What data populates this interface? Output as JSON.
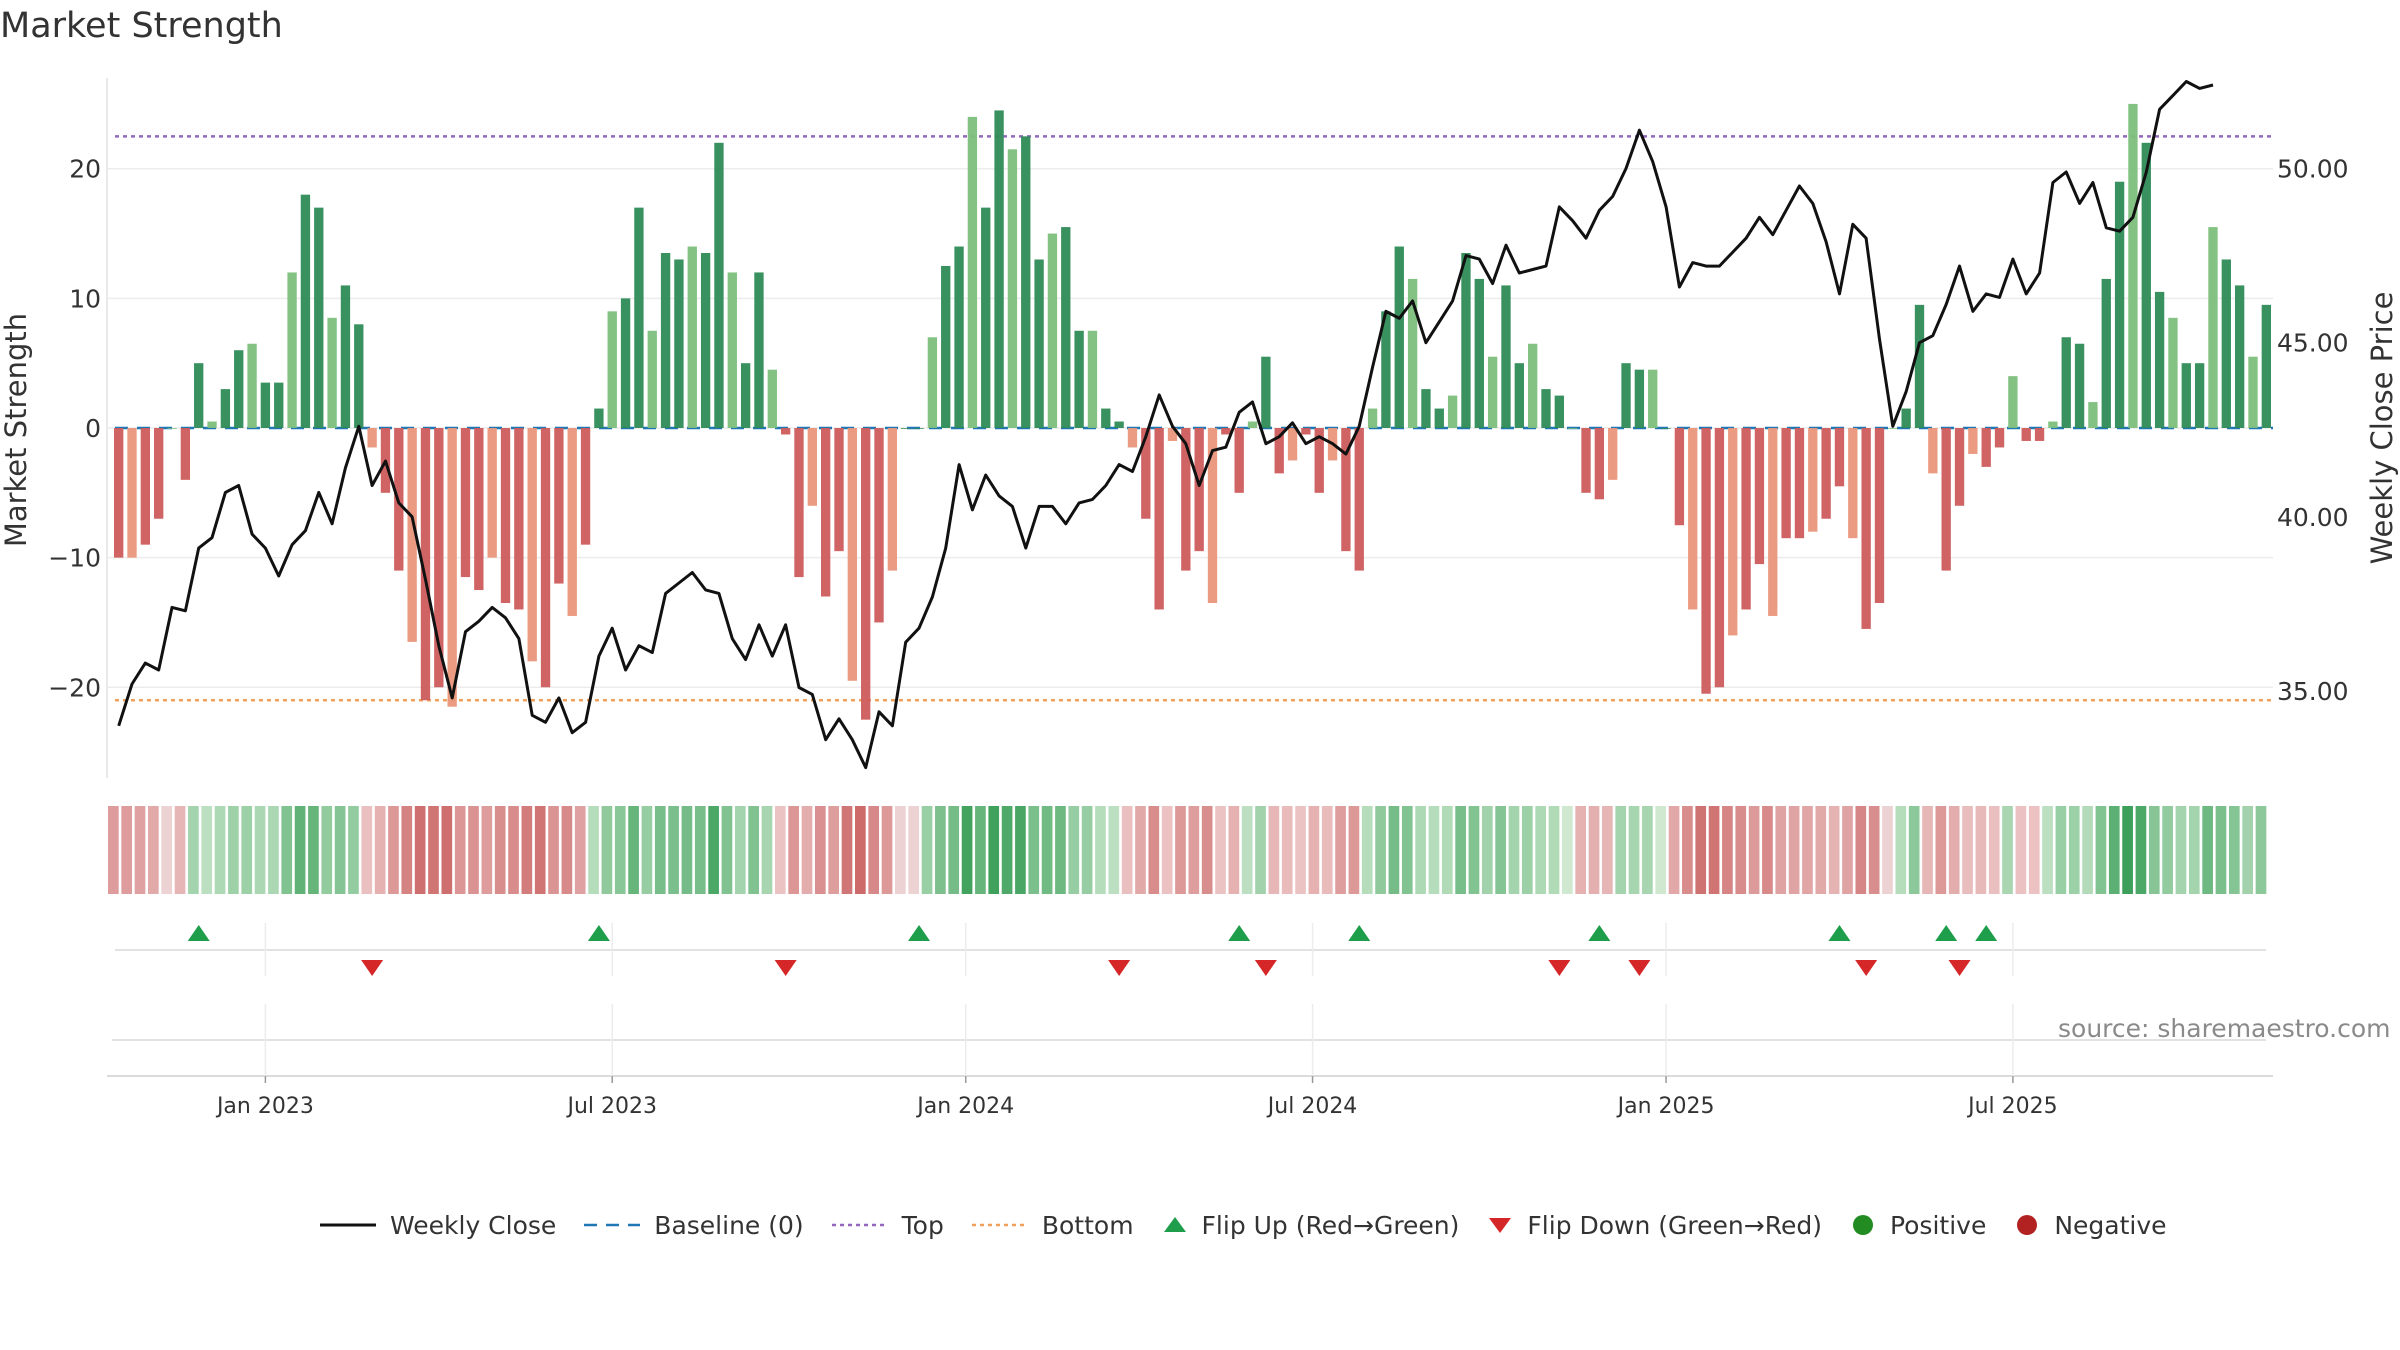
{
  "title": "Market Strength",
  "source": "source: sharemaestro.com",
  "colors": {
    "pos_dark": "#2e8b57",
    "pos_light": "#7cbf7c",
    "neg_dark": "#cd5c5c",
    "neg_light": "#e9967a",
    "top": "#9467bd",
    "bottom": "#f0a05a",
    "baseline": "#1f77b4",
    "flip_up": "#1e9e4a",
    "flip_down": "#d62728",
    "positive": "#228b22",
    "negative": "#b22222",
    "price": "#111111"
  },
  "legend": [
    {
      "key": "line",
      "label": "Weekly Close",
      "icon": "line-icon"
    },
    {
      "key": "baseline",
      "label": "Baseline (0)",
      "icon": "dashed-line-icon"
    },
    {
      "key": "top",
      "label": "Top",
      "icon": "dotted-line-icon"
    },
    {
      "key": "bottom",
      "label": "Bottom",
      "icon": "dotted-line-icon"
    },
    {
      "key": "flip_up",
      "label": "Flip Up (Red→Green)",
      "icon": "triangle-up-icon"
    },
    {
      "key": "flip_down",
      "label": "Flip Down (Green→Red)",
      "icon": "triangle-down-icon"
    },
    {
      "key": "positive",
      "label": "Positive",
      "icon": "dot-icon"
    },
    {
      "key": "negative",
      "label": "Negative",
      "icon": "dot-icon"
    }
  ],
  "chart_data": {
    "type": "bar",
    "title": "Market Strength",
    "ylabel": "Market Strength",
    "y2label": "Weekly Close Price",
    "ylim": [
      -27,
      27
    ],
    "y2lim": [
      32.5,
      52.6
    ],
    "yticks": [
      -20,
      -10,
      0,
      10,
      20
    ],
    "y2ticks": [
      35,
      40,
      45,
      50
    ],
    "y2ticklabels": [
      "35.00",
      "40.00",
      "45.00",
      "50.00"
    ],
    "top_level": 22.5,
    "bottom_level": -21,
    "baseline": 0,
    "x_axis": {
      "start": "2022-10-17",
      "period": "weekly",
      "tick_labels": [
        "Jan 2023",
        "Jul 2023",
        "Jan 2024",
        "Jul 2024",
        "Jan 2025",
        "Jul 2025"
      ],
      "tick_weeks": [
        11.5,
        37.5,
        64,
        90,
        116.5,
        142.5
      ]
    },
    "series": [
      {
        "name": "Market Strength",
        "type": "bar",
        "values": [
          -10,
          -10,
          -9,
          -7,
          0,
          -4,
          5,
          0.5,
          3,
          6,
          6.5,
          3.5,
          3.5,
          12,
          18,
          17,
          8.5,
          11,
          8,
          -1.5,
          -5,
          -11,
          -16.5,
          -21,
          -20,
          -21.5,
          -11.5,
          -12.5,
          -10,
          -13.5,
          -14,
          -18,
          -20,
          -12,
          -14.5,
          -9,
          1.5,
          9,
          10,
          17,
          7.5,
          13.5,
          13,
          14,
          13.5,
          22,
          12,
          5,
          12,
          4.5,
          -0.5,
          -11.5,
          -6,
          -13,
          -9.5,
          -19.5,
          -22.5,
          -15,
          -11,
          0,
          0,
          7,
          12.5,
          14,
          24,
          17,
          24.5,
          21.5,
          22.5,
          13,
          15,
          15.5,
          7.5,
          7.5,
          1.5,
          0.5,
          -1.5,
          -7,
          -14,
          -1,
          -11,
          -9.5,
          -13.5,
          -0.5,
          -5,
          0.5,
          5.5,
          -3.5,
          -2.5,
          -0.5,
          -5,
          -2.5,
          -9.5,
          -11,
          1.5,
          9,
          14,
          11.5,
          3,
          1.5,
          2.5,
          13.5,
          11.5,
          5.5,
          11,
          5,
          6.5,
          3,
          2.5,
          0,
          -5,
          -5.5,
          -4,
          5,
          4.5,
          4.5,
          0,
          -7.5,
          -14,
          -20.5,
          -20,
          -16,
          -14,
          -10.5,
          -14.5,
          -8.5,
          -8.5,
          -8,
          -7,
          -4.5,
          -8.5,
          -15.5,
          -13.5,
          0,
          1.5,
          9.5,
          -3.5,
          -11,
          -6,
          -2,
          -3,
          -1.5,
          4,
          -1,
          -1,
          0.5,
          7,
          6.5,
          2,
          11.5,
          19,
          25,
          22,
          10.5,
          8.5,
          5,
          5,
          15.5,
          13,
          11,
          5.5,
          9.5
        ]
      },
      {
        "name": "Weekly Close",
        "type": "line",
        "values": [
          34,
          35.2,
          35.8,
          35.6,
          37.4,
          37.3,
          39.1,
          39.4,
          40.7,
          40.9,
          39.5,
          39.1,
          38.3,
          39.2,
          39.6,
          40.7,
          39.8,
          41.4,
          42.6,
          40.9,
          41.6,
          40.4,
          40,
          38.2,
          36.3,
          34.8,
          36.7,
          37,
          37.4,
          37.1,
          36.5,
          34.3,
          34.1,
          34.8,
          33.8,
          34.1,
          36,
          36.8,
          35.6,
          36.3,
          36.1,
          37.8,
          38.1,
          38.4,
          37.9,
          37.8,
          36.5,
          35.9,
          36.9,
          36,
          36.9,
          35.1,
          34.9,
          33.6,
          34.2,
          33.6,
          32.8,
          34.4,
          34,
          36.4,
          36.8,
          37.7,
          39.1,
          41.5,
          40.2,
          41.2,
          40.6,
          40.3,
          39.1,
          40.3,
          40.3,
          39.8,
          40.4,
          40.5,
          40.9,
          41.5,
          41.3,
          42.3,
          43.5,
          42.6,
          42.1,
          40.9,
          41.9,
          42,
          43,
          43.3,
          42.1,
          42.3,
          42.7,
          42.1,
          42.3,
          42.1,
          41.8,
          42.6,
          44.3,
          45.9,
          45.7,
          46.2,
          45,
          45.6,
          46.2,
          47.5,
          47.4,
          46.7,
          47.8,
          47,
          47.1,
          47.2,
          48.9,
          48.5,
          48,
          48.8,
          49.2,
          50,
          51.1,
          50.2,
          48.9,
          46.6,
          47.3,
          47.2,
          47.2,
          47.6,
          48,
          48.6,
          48.1,
          48.8,
          49.5,
          49,
          47.9,
          46.4,
          48.4,
          48,
          45.1,
          42.6,
          43.6,
          45,
          45.2,
          46.1,
          47.2,
          45.9,
          46.4,
          46.3,
          47.4,
          46.4,
          47,
          49.6,
          49.9,
          49,
          49.6,
          48.3,
          48.2,
          48.6,
          49.9,
          51.7,
          52.1,
          52.5,
          52.3,
          52.4
        ]
      }
    ],
    "heatmap_strip": {
      "type": "heatmap",
      "encodes": "Market Strength (green positive, red negative, darker = stronger)"
    },
    "flip_up_weeks": [
      6,
      36,
      60,
      84,
      93,
      111,
      129,
      137,
      140
    ],
    "flip_down_weeks": [
      19,
      50,
      75,
      86,
      108,
      114,
      131,
      138
    ]
  }
}
